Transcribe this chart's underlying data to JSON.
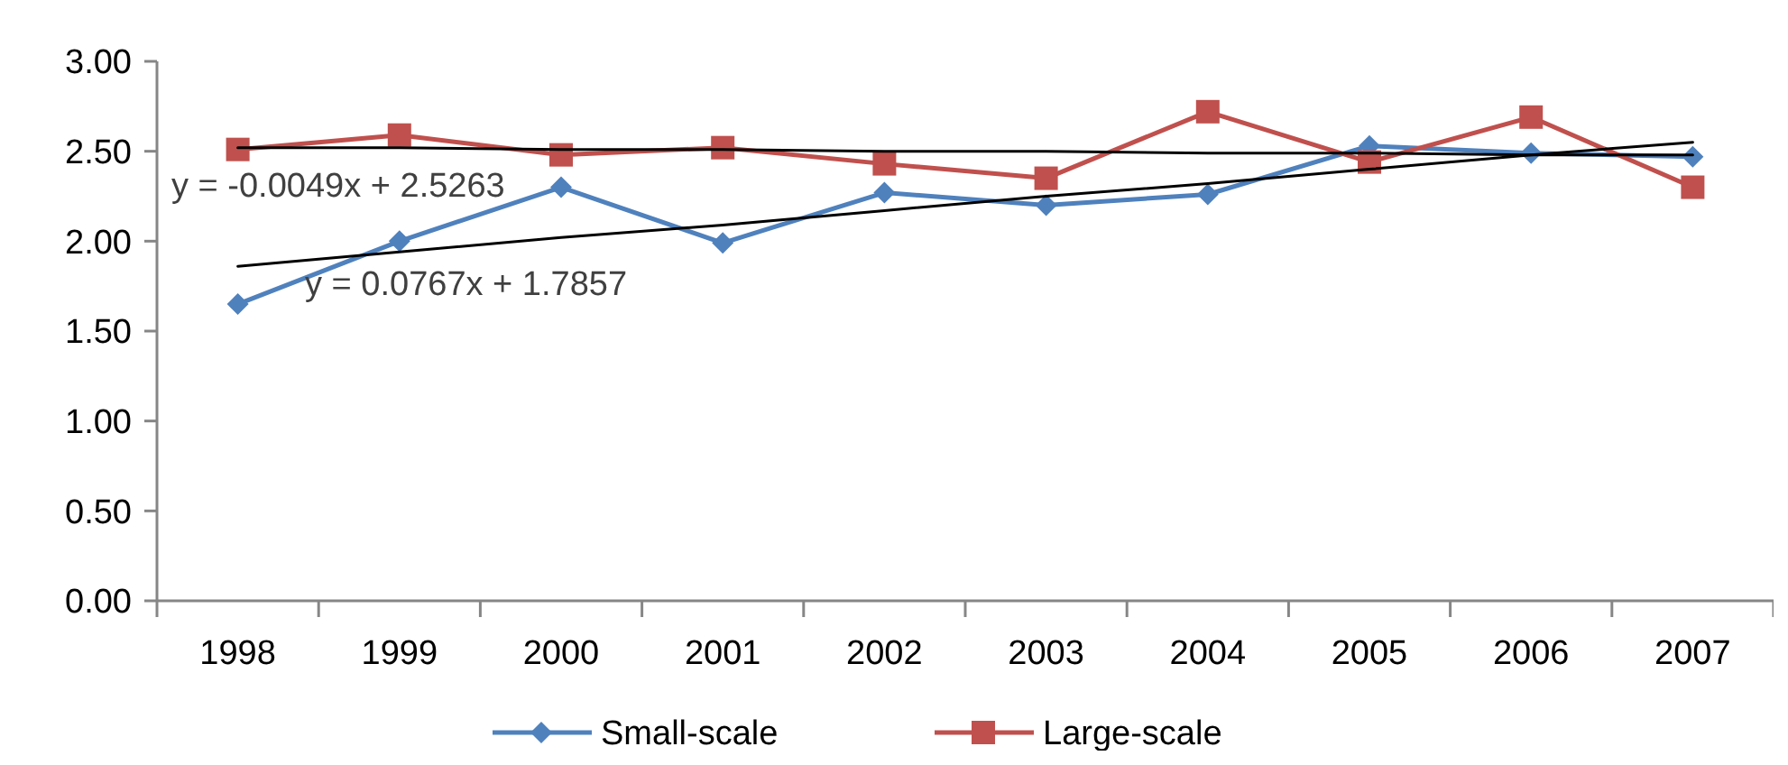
{
  "chart_data": {
    "type": "line",
    "categories": [
      "1998",
      "1999",
      "2000",
      "2001",
      "2002",
      "2003",
      "2004",
      "2005",
      "2006",
      "2007"
    ],
    "ylim": [
      0,
      3
    ],
    "yticks": [
      {
        "value": 0,
        "label": "0.00"
      },
      {
        "value": 0.5,
        "label": "0.50"
      },
      {
        "value": 1,
        "label": "1.00"
      },
      {
        "value": 1.5,
        "label": "1.50"
      },
      {
        "value": 2,
        "label": "2.00"
      },
      {
        "value": 2.5,
        "label": "2.50"
      },
      {
        "value": 3,
        "label": "3.00"
      }
    ],
    "grid": false,
    "legend": "bottom",
    "series": [
      {
        "name": "Small-scale",
        "color": "#4f81bd",
        "marker": "diamond",
        "values": [
          1.65,
          2.0,
          2.3,
          1.99,
          2.27,
          2.2,
          2.26,
          2.53,
          2.49,
          2.47
        ]
      },
      {
        "name": "Large-scale",
        "color": "#c0504d",
        "marker": "square",
        "values": [
          2.51,
          2.59,
          2.48,
          2.52,
          2.43,
          2.35,
          2.72,
          2.44,
          2.69,
          2.3
        ]
      },
      {
        "type": "line",
        "color": "#000000",
        "marker": "none",
        "values": [
          2.52,
          2.52,
          2.51,
          2.51,
          2.5,
          2.5,
          2.49,
          2.49,
          2.48,
          2.48
        ]
      },
      {
        "type": "line",
        "color": "#000000",
        "marker": "none",
        "values": [
          1.86,
          1.94,
          2.02,
          2.09,
          2.17,
          2.25,
          2.32,
          2.4,
          2.48,
          2.55
        ]
      }
    ],
    "annotations": [
      "y = -0.0049x + 2.5263",
      "y = 0.0767x + 1.7857"
    ]
  }
}
